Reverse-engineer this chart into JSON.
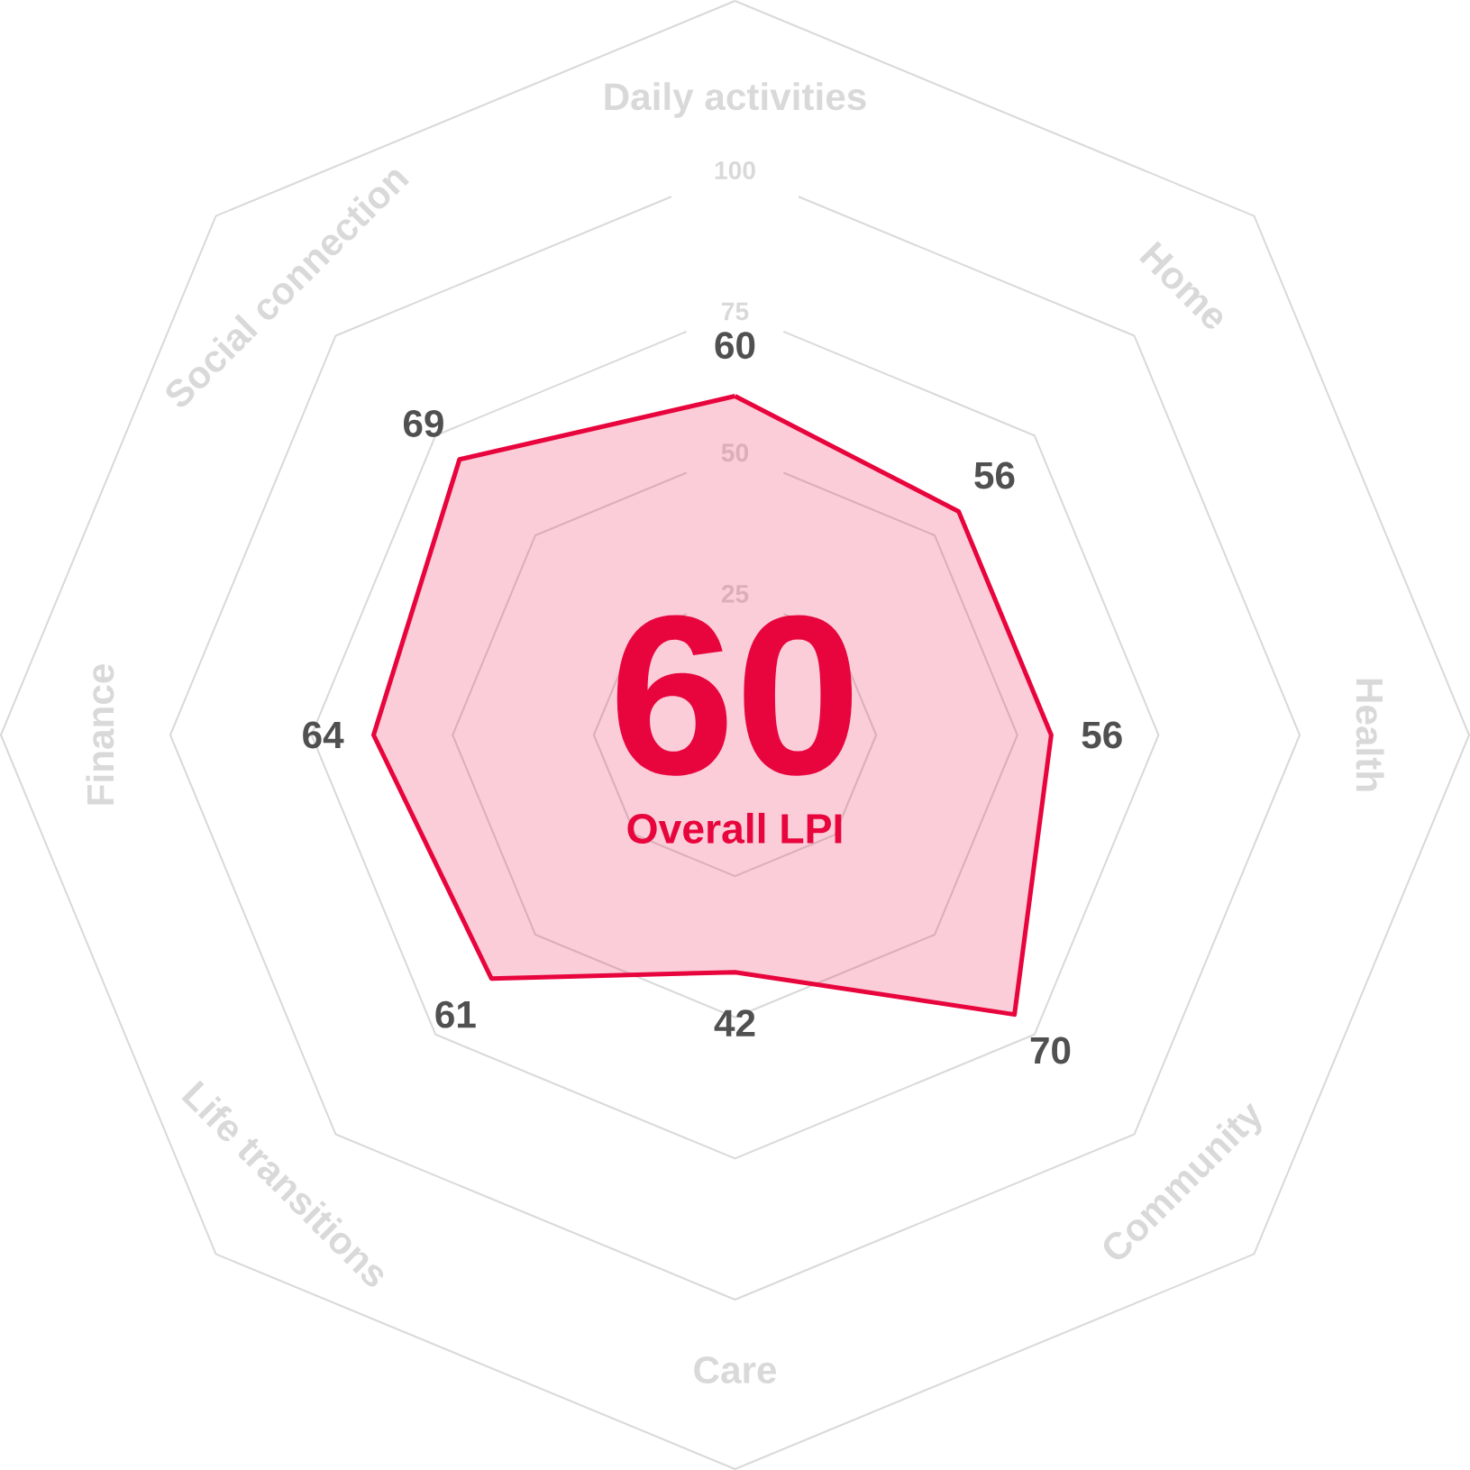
{
  "chart_data": {
    "type": "radar",
    "categories": [
      "Daily activities",
      "Home",
      "Health",
      "Community",
      "Care",
      "Life transitions",
      "Finance",
      "Social connection"
    ],
    "series": [
      {
        "color": "#e8043c",
        "values": [
          60,
          56,
          56,
          70,
          42,
          61,
          64,
          69
        ]
      }
    ],
    "ylim": [
      0,
      130
    ],
    "yticks": [
      25,
      50,
      75,
      100
    ],
    "grid": true,
    "data_labels": true,
    "annotations": [
      "60",
      "Overall LPI"
    ]
  }
}
